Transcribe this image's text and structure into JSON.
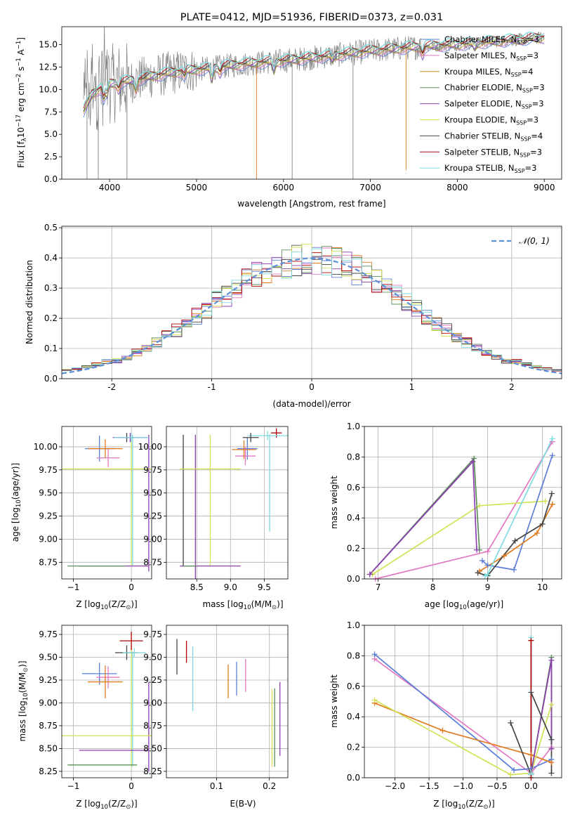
{
  "chart_data": [
    {
      "id": "spectrum",
      "type": "line",
      "title": "PLATE=0412, MJD=51936, FIBERID=0373, z=0.031",
      "xlabel": "wavelength [Angstrom, rest frame]",
      "ylabel_parts": [
        "Flux [f",
        "λ",
        "10",
        "−17",
        " erg cm",
        "−2",
        " s",
        "−1",
        " A",
        "−1",
        "]"
      ],
      "xlim": [
        3450,
        9200
      ],
      "ylim": [
        0,
        17.0
      ],
      "xticks": [
        4000,
        5000,
        6000,
        7000,
        8000,
        9000
      ],
      "yticks": [
        0.0,
        2.5,
        5.0,
        7.5,
        10.0,
        12.5,
        15.0
      ],
      "legend_placement": "right",
      "legend": [
        {
          "label": "Chabrier MILES, N",
          "sub": "SSP",
          "tail": "=3",
          "color": "#5b7fd8"
        },
        {
          "label": "Salpeter MILES, N",
          "sub": "SSP",
          "tail": "=3",
          "color": "#e377c2"
        },
        {
          "label": "Kroupa MILES, N",
          "sub": "SSP",
          "tail": "=4",
          "color": "#bf8a1c"
        },
        {
          "label": "Chabrier ELODIE, N",
          "sub": "SSP",
          "tail": "=3",
          "color": "#5a8f5a"
        },
        {
          "label": "Salpeter ELODIE, N",
          "sub": "SSP",
          "tail": "=3",
          "color": "#8e3fb0"
        },
        {
          "label": "Kroupa ELODIE, N",
          "sub": "SSP",
          "tail": "=3",
          "color": "#d4e157"
        },
        {
          "label": "Chabrier STELIB, N",
          "sub": "SSP",
          "tail": "=4",
          "color": "#444444"
        },
        {
          "label": "Salpeter STELIB, N",
          "sub": "SSP",
          "tail": "=3",
          "color": "#b00000"
        },
        {
          "label": "Kroupa STELIB, N",
          "sub": "SSP",
          "tail": "=3",
          "color": "#80dbe0"
        }
      ],
      "data_color": "#7f7f7f",
      "model_color": "#80dbe0",
      "continuum": [
        [
          3700,
          7.5
        ],
        [
          3800,
          9.5
        ],
        [
          3950,
          10.5
        ],
        [
          4100,
          10.8
        ],
        [
          4300,
          11.0
        ],
        [
          4500,
          11.5
        ],
        [
          4800,
          12.0
        ],
        [
          5100,
          12.3
        ],
        [
          5500,
          12.8
        ],
        [
          6000,
          13.2
        ],
        [
          6500,
          13.7
        ],
        [
          7000,
          14.3
        ],
        [
          7500,
          14.7
        ],
        [
          8000,
          15.0
        ],
        [
          8500,
          15.4
        ],
        [
          9000,
          15.8
        ]
      ],
      "sky_lines": [
        [
          3740,
          0.0
        ],
        [
          3870,
          0.0
        ],
        [
          4200,
          0.0
        ],
        [
          5690,
          0.0
        ],
        [
          6100,
          0.0
        ],
        [
          6800,
          0.0
        ],
        [
          7410,
          1.0
        ]
      ]
    },
    {
      "id": "residuals",
      "type": "line",
      "xlabel": "(data-model)/error",
      "ylabel": "Normed distribution",
      "xlim": [
        -2.5,
        2.5
      ],
      "ylim": [
        0,
        0.505
      ],
      "xticks": [
        -2,
        -1,
        0,
        1,
        2
      ],
      "yticks": [
        0.0,
        0.1,
        0.2,
        0.3,
        0.4,
        0.5
      ],
      "grid": true,
      "legend_placement": "top-right",
      "legend": "𝒩(0, 1)",
      "gaussian_color": "#5b8fd8",
      "bin_width": 0.1,
      "hist_colors": [
        "#5b7fd8",
        "#e377c2",
        "#e07b20",
        "#5a8f5a",
        "#8e3fb0",
        "#d4e157",
        "#444444",
        "#b00000",
        "#80dbe0"
      ]
    },
    {
      "id": "z-age",
      "type": "scatter",
      "xlabel_parts": [
        "Z [log",
        "10",
        "(Z/Z",
        "⊙",
        ")]"
      ],
      "ylabel_parts": [
        "age  [log",
        "10",
        "(age/yr)]"
      ],
      "xlim": [
        -1.2,
        0.35
      ],
      "ylim": [
        8.57,
        10.22
      ],
      "xticks": [
        -1,
        0
      ],
      "yticks": [
        8.75,
        9.0,
        9.25,
        9.5,
        9.75,
        10.0
      ],
      "grid": true,
      "points": [
        {
          "x": -0.55,
          "y": 9.98,
          "xerr": 0.25,
          "yerr": 0.14,
          "color": "#5b7fd8"
        },
        {
          "x": -0.4,
          "y": 9.88,
          "xerr": 0.2,
          "yerr": 0.1,
          "color": "#e377c2"
        },
        {
          "x": -0.45,
          "y": 9.98,
          "xerr": 0.3,
          "yerr": 0.1,
          "color": "#e07b20"
        },
        {
          "x": -0.08,
          "y": 10.1,
          "xerr": 0.14,
          "yerr": 0.05,
          "color": "#444444"
        },
        {
          "x": -0.02,
          "y": 10.1,
          "xerr": 0.3,
          "yerr": 0.05,
          "color": "#8e3fb0"
        },
        {
          "x": 0.0,
          "y": 10.1,
          "xerr": 0.3,
          "yerr": 0.05,
          "color": "#80dbe0"
        },
        {
          "x": -0.5,
          "y": 9.76,
          "xerr": 0.9,
          "yerr": 0.0,
          "color": "#d4e157"
        },
        {
          "x": -0.3,
          "y": 8.71,
          "xerr": 0.6,
          "yerr": 0.0,
          "color": "#8e3fb0"
        },
        {
          "x": -0.6,
          "y": 8.71,
          "xerr": 0.5,
          "yerr": 0.0,
          "color": "#5a8f5a"
        }
      ],
      "vlines": [
        {
          "x": 0.0,
          "y0": 8.71,
          "y1": 10.1,
          "color": "#d4e157"
        },
        {
          "x": 0.02,
          "y0": 8.71,
          "y1": 10.13,
          "color": "#80dbe0"
        },
        {
          "x": 0.3,
          "y0": 8.65,
          "y1": 10.13,
          "color": "#8e3fb0"
        }
      ]
    },
    {
      "id": "mass-age",
      "type": "scatter",
      "xlabel_parts": [
        "mass [log",
        "10",
        "(M/M",
        "⊙",
        ")]"
      ],
      "xlim": [
        8.05,
        9.85
      ],
      "ylim": [
        8.57,
        10.22
      ],
      "xticks": [
        8.5,
        9.0,
        9.5
      ],
      "yticks": [
        8.75,
        9.0,
        9.25,
        9.5,
        9.75,
        10.0
      ],
      "grid": true,
      "points": [
        {
          "x": 9.25,
          "y": 9.98,
          "xerr": 0.15,
          "yerr": 0.12,
          "color": "#5b7fd8"
        },
        {
          "x": 9.22,
          "y": 9.9,
          "xerr": 0.15,
          "yerr": 0.1,
          "color": "#e377c2"
        },
        {
          "x": 9.2,
          "y": 9.97,
          "xerr": 0.18,
          "yerr": 0.1,
          "color": "#e07b20"
        },
        {
          "x": 9.68,
          "y": 10.15,
          "xerr": 0.08,
          "yerr": 0.05,
          "color": "#b00000"
        },
        {
          "x": 9.55,
          "y": 10.12,
          "xerr": 0.3,
          "yerr": 0.05,
          "color": "#80dbe0"
        },
        {
          "x": 9.3,
          "y": 10.1,
          "xerr": 0.12,
          "yerr": 0.05,
          "color": "#444444"
        },
        {
          "x": 8.7,
          "y": 9.76,
          "xerr": 0.45,
          "yerr": 0.0,
          "color": "#d4e157"
        },
        {
          "x": 8.7,
          "y": 8.71,
          "xerr": 0.45,
          "yerr": 0.0,
          "color": "#8e3fb0"
        },
        {
          "x": 8.4,
          "y": 8.71,
          "xerr": 0.1,
          "yerr": 0.0,
          "color": "#5a8f5a"
        }
      ],
      "vlines": [
        {
          "x": 8.3,
          "y0": 8.71,
          "y1": 10.13,
          "color": "#444444"
        },
        {
          "x": 8.48,
          "y0": 8.44,
          "y1": 10.13,
          "color": "#8e3fb0"
        },
        {
          "x": 8.7,
          "y0": 8.71,
          "y1": 10.13,
          "color": "#d4e157"
        },
        {
          "x": 9.58,
          "y0": 9.08,
          "y1": 10.13,
          "color": "#80dbe0"
        }
      ]
    },
    {
      "id": "age-weight",
      "type": "line",
      "xlabel_parts": [
        "age  [log",
        "10",
        "(age/yr)]"
      ],
      "ylabel": "mass weight",
      "xlim": [
        6.75,
        10.35
      ],
      "ylim": [
        0,
        1.0
      ],
      "xticks": [
        7,
        8,
        9,
        10
      ],
      "yticks": [
        0.0,
        0.2,
        0.4,
        0.6,
        0.8,
        1.0
      ],
      "grid": true,
      "series": [
        {
          "color": "#e377c2",
          "x": [
            6.95,
            9.0,
            10.18
          ],
          "y": [
            0.0,
            0.18,
            0.9
          ]
        },
        {
          "color": "#d4e157",
          "x": [
            6.9,
            8.85,
            10.05
          ],
          "y": [
            0.03,
            0.48,
            0.51
          ]
        },
        {
          "color": "#5a8f5a",
          "x": [
            6.85,
            8.75,
            8.85
          ],
          "y": [
            0.03,
            0.79,
            0.19
          ]
        },
        {
          "color": "#8e3fb0",
          "x": [
            6.85,
            8.73,
            8.8
          ],
          "y": [
            0.03,
            0.77,
            0.19
          ]
        },
        {
          "color": "#5b7fd8",
          "x": [
            8.9,
            9.0,
            9.48,
            10.18
          ],
          "y": [
            0.12,
            0.09,
            0.06,
            0.81
          ]
        },
        {
          "color": "#e07b20",
          "x": [
            8.85,
            9.3,
            9.9,
            10.18
          ],
          "y": [
            0.05,
            0.15,
            0.3,
            0.49
          ]
        },
        {
          "color": "#444444",
          "x": [
            8.82,
            9.0,
            9.5,
            10.0,
            10.17
          ],
          "y": [
            0.04,
            0.02,
            0.25,
            0.36,
            0.56
          ]
        },
        {
          "color": "#80dbe0",
          "x": [
            8.95,
            9.0,
            10.18
          ],
          "y": [
            0.02,
            0.03,
            0.92
          ]
        }
      ]
    },
    {
      "id": "z-mass",
      "type": "scatter",
      "xlabel_parts": [
        "Z [log",
        "10",
        "(Z/Z",
        "⊙",
        ")]"
      ],
      "ylabel_parts": [
        "mass [log",
        "10",
        "(M/M",
        "⊙",
        ")]"
      ],
      "xlim": [
        -1.2,
        0.35
      ],
      "ylim": [
        8.18,
        9.85
      ],
      "xticks": [
        -1,
        0
      ],
      "yticks": [
        8.25,
        8.5,
        8.75,
        9.0,
        9.25,
        9.5,
        9.75
      ],
      "grid": true,
      "points": [
        {
          "x": -0.55,
          "y": 9.32,
          "xerr": 0.3,
          "yerr": 0.12,
          "color": "#5b7fd8"
        },
        {
          "x": -0.4,
          "y": 9.28,
          "xerr": 0.2,
          "yerr": 0.12,
          "color": "#e377c2"
        },
        {
          "x": -0.45,
          "y": 9.23,
          "xerr": 0.3,
          "yerr": 0.18,
          "color": "#e07b20"
        },
        {
          "x": 0.0,
          "y": 9.68,
          "xerr": 0.2,
          "yerr": 0.1,
          "color": "#b00000"
        },
        {
          "x": -0.08,
          "y": 9.55,
          "xerr": 0.2,
          "yerr": 0.08,
          "color": "#444444"
        },
        {
          "x": 0.05,
          "y": 9.55,
          "xerr": 0.2,
          "yerr": 0.05,
          "color": "#80dbe0"
        },
        {
          "x": -0.5,
          "y": 8.64,
          "xerr": 0.9,
          "yerr": 0.0,
          "color": "#d4e157"
        },
        {
          "x": -0.3,
          "y": 8.48,
          "xerr": 0.6,
          "yerr": 0.0,
          "color": "#8e3fb0"
        },
        {
          "x": -0.5,
          "y": 8.32,
          "xerr": 0.6,
          "yerr": 0.0,
          "color": "#5a8f5a"
        }
      ],
      "vlines": [
        {
          "x": 0.0,
          "y0": 8.3,
          "y1": 9.65,
          "color": "#d4e157"
        },
        {
          "x": 0.02,
          "y0": 8.3,
          "y1": 9.56,
          "color": "#80dbe0"
        },
        {
          "x": 0.3,
          "y0": 8.25,
          "y1": 9.23,
          "color": "#8e3fb0"
        }
      ]
    },
    {
      "id": "ebv-mass",
      "type": "scatter",
      "xlabel": "E(B-V)",
      "xlim": [
        0.005,
        0.235
      ],
      "ylim": [
        8.18,
        9.85
      ],
      "xticks": [
        0.1,
        0.2
      ],
      "yticks": [
        8.25,
        8.5,
        8.75,
        9.0,
        9.25,
        9.5,
        9.75
      ],
      "grid": true,
      "vlines": [
        {
          "x": 0.025,
          "y0": 9.31,
          "y1": 9.7,
          "color": "#444444"
        },
        {
          "x": 0.043,
          "y0": 9.44,
          "y1": 9.68,
          "color": "#b00000"
        },
        {
          "x": 0.055,
          "y0": 8.91,
          "y1": 9.62,
          "color": "#80dbe0"
        },
        {
          "x": 0.122,
          "y0": 9.05,
          "y1": 9.42,
          "color": "#e07b20"
        },
        {
          "x": 0.138,
          "y0": 9.08,
          "y1": 9.45,
          "color": "#5b7fd8"
        },
        {
          "x": 0.155,
          "y0": 9.12,
          "y1": 9.48,
          "color": "#e377c2"
        },
        {
          "x": 0.205,
          "y0": 8.3,
          "y1": 9.15,
          "color": "#d4e157"
        },
        {
          "x": 0.21,
          "y0": 8.3,
          "y1": 9.16,
          "color": "#5a8f5a"
        },
        {
          "x": 0.22,
          "y0": 8.42,
          "y1": 9.23,
          "color": "#8e3fb0"
        }
      ]
    },
    {
      "id": "z-weight",
      "type": "line",
      "xlabel_parts": [
        "Z [log",
        "10",
        "(Z/Z",
        "⊙",
        ")]"
      ],
      "ylabel": "mass weight",
      "xlim": [
        -2.45,
        0.45
      ],
      "ylim": [
        0,
        1.0
      ],
      "xticks": [
        -2.0,
        -1.5,
        -1.0,
        -0.5,
        0.0
      ],
      "yticks": [
        0.0,
        0.2,
        0.4,
        0.6,
        0.8,
        1.0
      ],
      "grid": true,
      "series": [
        {
          "color": "#e377c2",
          "x": [
            -2.3,
            0.0,
            0.3
          ],
          "y": [
            0.78,
            0.03,
            0.2
          ]
        },
        {
          "color": "#5b7fd8",
          "x": [
            -2.3,
            -0.25,
            0.0,
            0.3
          ],
          "y": [
            0.81,
            0.05,
            0.06,
            0.12
          ]
        },
        {
          "color": "#e07b20",
          "x": [
            -2.3,
            -1.3,
            0.0,
            0.3
          ],
          "y": [
            0.49,
            0.31,
            0.15,
            0.1
          ]
        },
        {
          "color": "#d4e157",
          "x": [
            -2.3,
            -0.3,
            0.0,
            0.3
          ],
          "y": [
            0.51,
            0.02,
            0.03,
            0.48
          ]
        },
        {
          "color": "#5a8f5a",
          "x": [
            0.0,
            0.3,
            0.3
          ],
          "y": [
            0.03,
            0.79,
            0.19
          ]
        },
        {
          "color": "#8e3fb0",
          "x": [
            0.0,
            0.3,
            0.3
          ],
          "y": [
            0.03,
            0.77,
            0.19
          ]
        },
        {
          "color": "#444444",
          "x": [
            -0.3,
            0.0,
            0.0,
            0.3,
            0.3
          ],
          "y": [
            0.36,
            0.02,
            0.56,
            0.25,
            0.03
          ]
        },
        {
          "color": "#80dbe0",
          "x": [
            0.0,
            0.0,
            0.0
          ],
          "y": [
            0.02,
            0.92,
            0.03
          ]
        },
        {
          "color": "#b00000",
          "x": [
            0.0,
            0.0
          ],
          "y": [
            0.0,
            0.9
          ]
        }
      ]
    }
  ]
}
